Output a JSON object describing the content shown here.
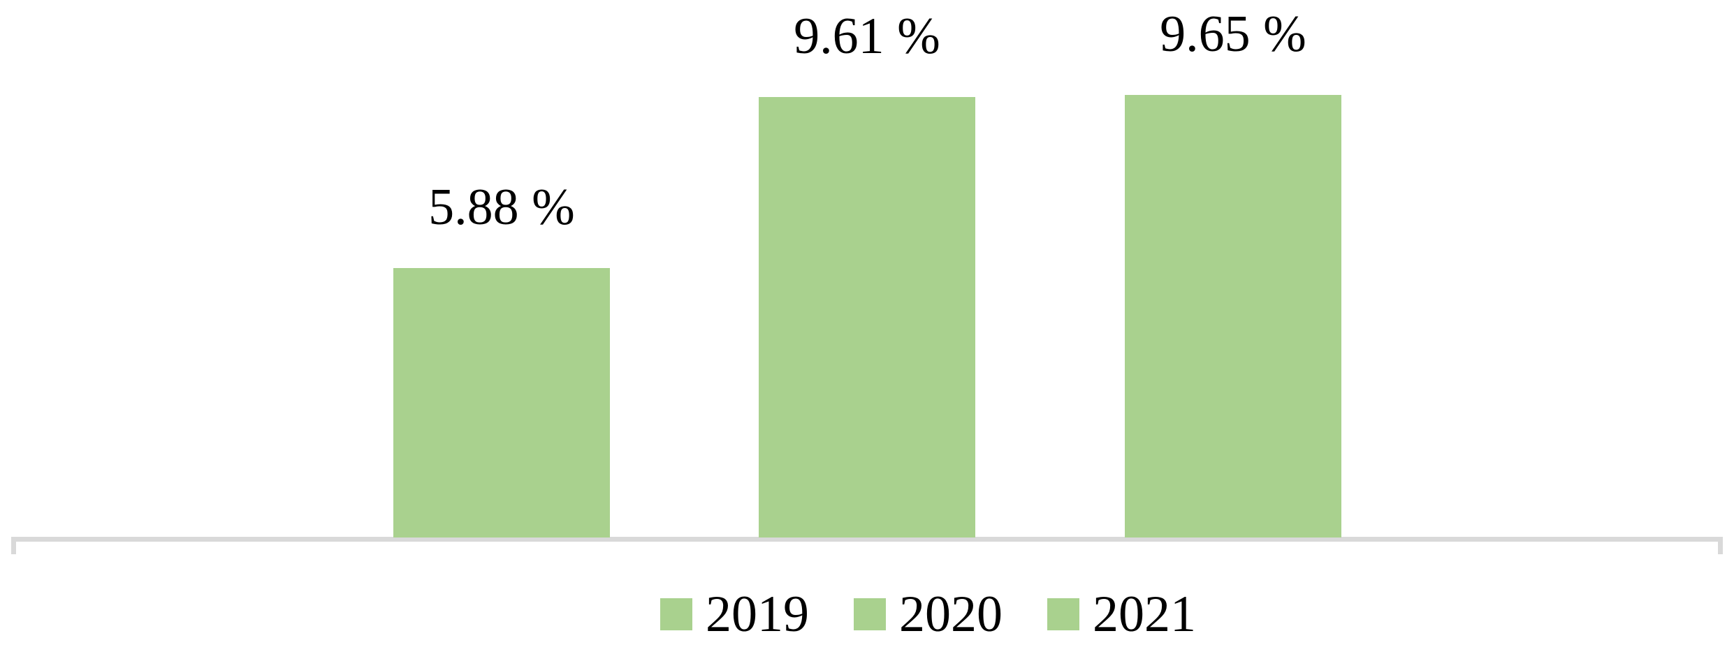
{
  "chart_data": {
    "type": "bar",
    "title": "",
    "xlabel": "",
    "ylabel": "",
    "categories": [
      "2019",
      "2020",
      "2021"
    ],
    "values": [
      5.88,
      9.61,
      9.65
    ],
    "data_labels": [
      "5.88 %",
      "9.61 %",
      "9.65 %"
    ],
    "ylim": [
      0,
      10
    ],
    "grid": false,
    "legend_position": "bottom",
    "legend_entries": [
      "2019",
      "2020",
      "2021"
    ],
    "colors": {
      "bar_fill": "#A9D18E",
      "axis_line": "#D9D9D9",
      "label_text": "#000000",
      "background": "#FFFFFF"
    }
  }
}
